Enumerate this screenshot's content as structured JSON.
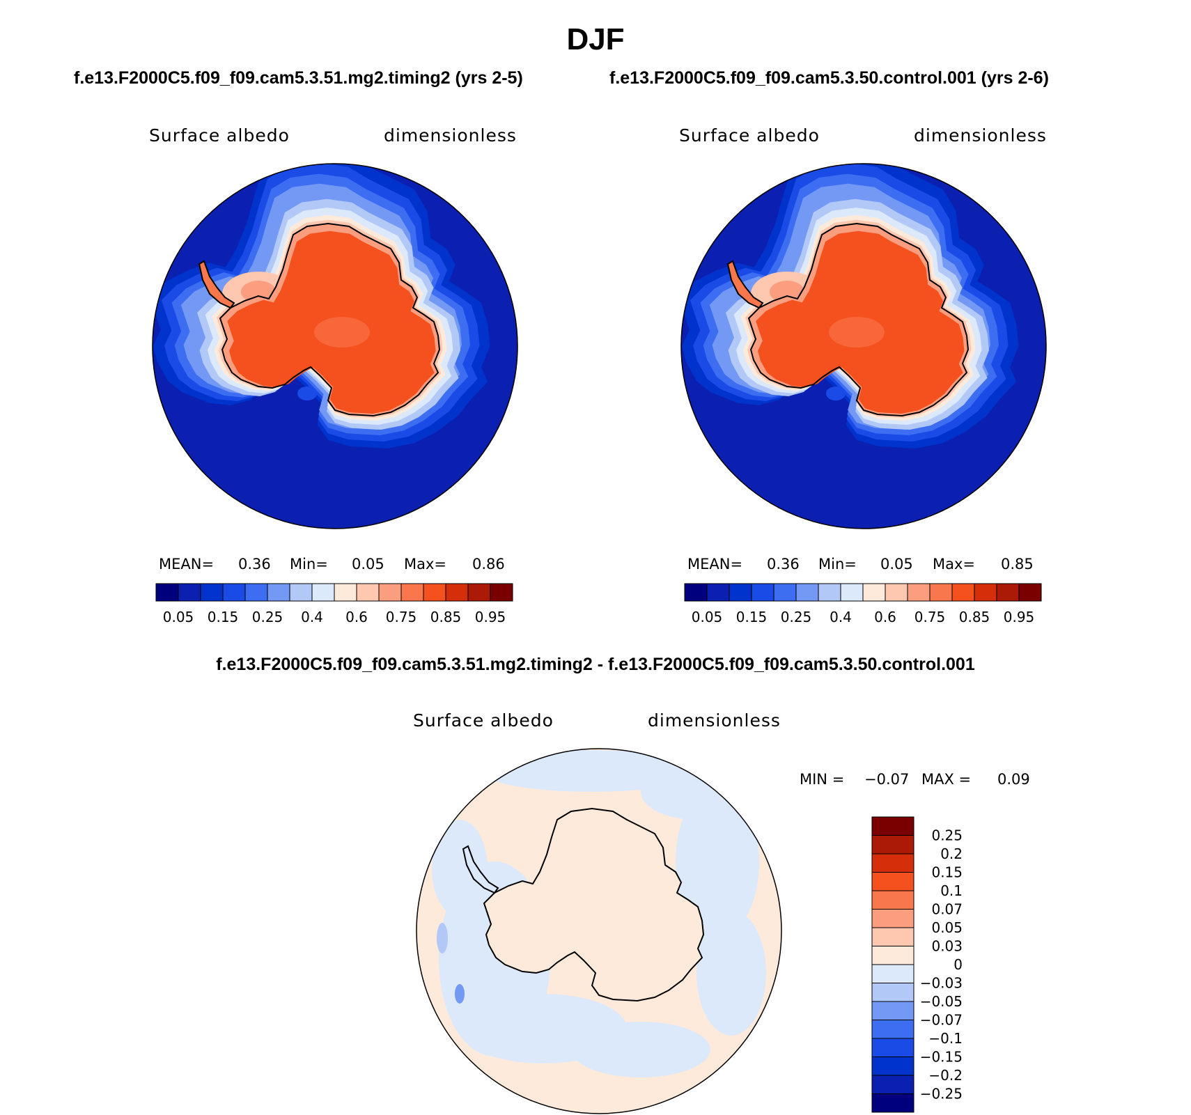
{
  "figure": {
    "title": "DJF",
    "panels": [
      {
        "case_title": "f.e13.F2000C5.f09_f09.cam5.3.51.mg2.timing2 (yrs 2-5)",
        "variable": "Surface albedo",
        "units": "dimensionless",
        "mean_label": "MEAN=",
        "mean": "0.36",
        "min_label": "Min=",
        "min": "0.05",
        "max_label": "Max=",
        "max": "0.86"
      },
      {
        "case_title": "f.e13.F2000C5.f09_f09.cam5.3.50.control.001 (yrs 2-6)",
        "variable": "Surface albedo",
        "units": "dimensionless",
        "mean_label": "MEAN=",
        "mean": "0.36",
        "min_label": "Min=",
        "min": "0.05",
        "max_label": "Max=",
        "max": "0.85"
      }
    ],
    "difference": {
      "title": "f.e13.F2000C5.f09_f09.cam5.3.51.mg2.timing2 - f.e13.F2000C5.f09_f09.cam5.3.50.control.001",
      "variable": "Surface albedo",
      "units": "dimensionless",
      "min_label": "MIN =",
      "min": "−0.07",
      "max_label": "MAX =",
      "max": "0.09"
    }
  },
  "chart_data": [
    {
      "type": "heatmap",
      "projection": "polar stereographic, south pole",
      "title": "Surface albedo",
      "units": "dimensionless",
      "mean": 0.36,
      "min": 0.05,
      "max": 0.86,
      "colorbar": {
        "colors": [
          "#00007f",
          "#0b1fb0",
          "#0033cc",
          "#1a4be6",
          "#3d6ef2",
          "#7499f5",
          "#b2c9f7",
          "#dce9fb",
          "#feeadb",
          "#fdc7b0",
          "#fb9e7f",
          "#f8774d",
          "#f4511f",
          "#d42e0a",
          "#aa1a06",
          "#7a0000"
        ],
        "tick_labels": [
          "0.05",
          "0.15",
          "0.25",
          "0.4",
          "0.6",
          "0.75",
          "0.85",
          "0.95"
        ]
      },
      "land_value_approx": 0.85,
      "ocean_value_approx": 0.07
    },
    {
      "type": "heatmap",
      "projection": "polar stereographic, south pole",
      "title": "Surface albedo",
      "units": "dimensionless",
      "mean": 0.36,
      "min": 0.05,
      "max": 0.85,
      "colorbar": {
        "colors": [
          "#00007f",
          "#0b1fb0",
          "#0033cc",
          "#1a4be6",
          "#3d6ef2",
          "#7499f5",
          "#b2c9f7",
          "#dce9fb",
          "#feeadb",
          "#fdc7b0",
          "#fb9e7f",
          "#f8774d",
          "#f4511f",
          "#d42e0a",
          "#aa1a06",
          "#7a0000"
        ],
        "tick_labels": [
          "0.05",
          "0.15",
          "0.25",
          "0.4",
          "0.6",
          "0.75",
          "0.85",
          "0.95"
        ]
      },
      "land_value_approx": 0.85,
      "ocean_value_approx": 0.07
    },
    {
      "type": "heatmap",
      "projection": "polar stereographic, south pole",
      "title": "Surface albedo",
      "units": "dimensionless",
      "min": -0.07,
      "max": 0.09,
      "colorbar": {
        "orientation": "vertical",
        "colors": [
          "#7a0000",
          "#aa1a06",
          "#d42e0a",
          "#f4511f",
          "#f8774d",
          "#fb9e7f",
          "#fdc7b0",
          "#feeadb",
          "#dce9fb",
          "#b2c9f7",
          "#7499f5",
          "#3d6ef2",
          "#1a4be6",
          "#0033cc",
          "#0b1fb0",
          "#00007f"
        ],
        "tick_labels": [
          "0.25",
          "0.2",
          "0.15",
          "0.1",
          "0.07",
          "0.05",
          "0.03",
          "0",
          "−0.03",
          "−0.05",
          "−0.07",
          "−0.1",
          "−0.15",
          "−0.2",
          "−0.25"
        ]
      }
    }
  ]
}
